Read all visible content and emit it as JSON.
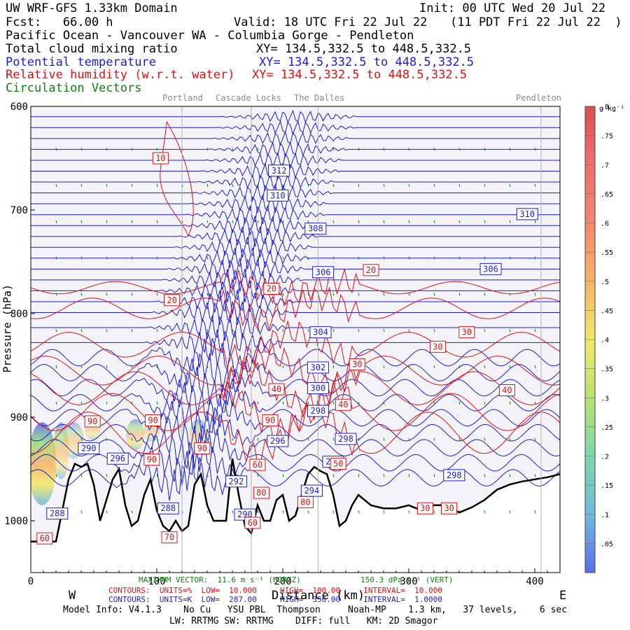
{
  "header": {
    "model": "UW WRF-GFS 1.33km Domain",
    "init": "Init: 00 UTC Wed 20 Jul 22",
    "fcst": "Fcst:   66.00 h",
    "valid": "Valid: 18 UTC Fri 22 Jul 22",
    "valid_local": "(11 PDT Fri 22 Jul 22  )",
    "region": "Pacific Ocean - Vancouver WA - Columbia Gorge - Pendleton",
    "fields": [
      {
        "name": "Total cloud mixing ratio",
        "xy": "XY= 134.5,332.5 to 448.5,332.5",
        "color": "#000000"
      },
      {
        "name": "Potential temperature",
        "xy": "XY= 134.5,332.5 to 448.5,332.5",
        "color": "#1a1ad8"
      },
      {
        "name": "Relative humidity (w.r.t. water)",
        "xy": "XY= 134.5,332.5 to 448.5,332.5",
        "color": "#e01010"
      },
      {
        "name": "Circulation Vectors",
        "xy": "",
        "color": "#108010"
      }
    ]
  },
  "locations": [
    "Portland",
    "Cascade Locks",
    "The Dalles",
    "Pendleton"
  ],
  "footer": {
    "max_vector": "MAXIMUM VECTOR:  11.6 m s⁻¹ (HORIZ)",
    "max_vector_vert": "150.3 dPa s⁻¹ (VERT)",
    "contours_rh": "CONTOURS:  UNITS=%  LOW=  10.000     HIGH=  100.00     INTERVAL=  10.000",
    "contours_theta": "CONTOURS:  UNITS=K  LOW=  287.00     HIGH=  356.00     INTERVAL=  1.0000",
    "west": "W",
    "east": "E",
    "model_info": "Model Info: V4.1.3    No Cu   YSU PBL  Thompson     Noah-MP    1.3 km,   37 levels,    6 sec",
    "model_info2": "LW: RRTMG SW: RRTMG    DIFF: full   KM: 2D Smagor"
  },
  "chart_data": {
    "type": "cross-section",
    "xlabel": "Distance (km)",
    "ylabel": "Pressure (hPa)",
    "xlim": [
      0,
      420
    ],
    "ylim": [
      1050,
      600
    ],
    "x_ticks": [
      0,
      100,
      200,
      300,
      400
    ],
    "y_ticks": [
      600,
      700,
      800,
      900,
      1000
    ],
    "location_km": [
      120,
      175,
      228,
      405
    ],
    "terrain": {
      "x": [
        0,
        5,
        10,
        20,
        30,
        35,
        40,
        45,
        50,
        55,
        60,
        65,
        70,
        75,
        80,
        85,
        90,
        95,
        100,
        105,
        110,
        115,
        120,
        125,
        130,
        135,
        140,
        145,
        150,
        155,
        160,
        165,
        170,
        175,
        180,
        185,
        190,
        195,
        200,
        205,
        210,
        215,
        220,
        225,
        230,
        235,
        240,
        245,
        250,
        255,
        260,
        270,
        280,
        290,
        300,
        310,
        320,
        330,
        340,
        350,
        360,
        370,
        380,
        390,
        400,
        410,
        420
      ],
      "p": [
        1020,
        1020,
        1020,
        1020,
        960,
        945,
        948,
        945,
        965,
        1000,
        980,
        960,
        950,
        985,
        1005,
        1000,
        975,
        960,
        990,
        1005,
        1010,
        1000,
        1010,
        1005,
        965,
        955,
        985,
        1000,
        1000,
        1000,
        940,
        975,
        1005,
        1012,
        985,
        1000,
        1000,
        980,
        975,
        1000,
        995,
        975,
        955,
        948,
        952,
        955,
        975,
        1005,
        1000,
        985,
        975,
        985,
        988,
        988,
        985,
        990,
        985,
        985,
        992,
        987,
        980,
        970,
        965,
        962,
        960,
        958,
        955
      ]
    },
    "theta_labels": [
      {
        "value": "312",
        "x": 197,
        "p": 662
      },
      {
        "value": "310",
        "x": 196,
        "p": 686
      },
      {
        "value": "310",
        "x": 394,
        "p": 704
      },
      {
        "value": "308",
        "x": 226,
        "p": 718
      },
      {
        "value": "306",
        "x": 232,
        "p": 760
      },
      {
        "value": "306",
        "x": 365,
        "p": 757
      },
      {
        "value": "304",
        "x": 230,
        "p": 818
      },
      {
        "value": "302",
        "x": 228,
        "p": 852
      },
      {
        "value": "300",
        "x": 228,
        "p": 872
      },
      {
        "value": "298",
        "x": 228,
        "p": 894
      },
      {
        "value": "298",
        "x": 250,
        "p": 921
      },
      {
        "value": "298",
        "x": 336,
        "p": 956
      },
      {
        "value": "296",
        "x": 69,
        "p": 940
      },
      {
        "value": "296",
        "x": 196,
        "p": 923
      },
      {
        "value": "294",
        "x": 223,
        "p": 971
      },
      {
        "value": "294",
        "x": 240,
        "p": 943
      },
      {
        "value": "292",
        "x": 163,
        "p": 962
      },
      {
        "value": "290",
        "x": 170,
        "p": 994
      },
      {
        "value": "290",
        "x": 46,
        "p": 930
      },
      {
        "value": "288",
        "x": 109,
        "p": 988
      },
      {
        "value": "288",
        "x": 21,
        "p": 993
      }
    ],
    "rh_labels": [
      {
        "value": "10",
        "x": 103,
        "p": 650
      },
      {
        "value": "20",
        "x": 270,
        "p": 758
      },
      {
        "value": "20",
        "x": 191,
        "p": 776
      },
      {
        "value": "20",
        "x": 112,
        "p": 787
      },
      {
        "value": "30",
        "x": 346,
        "p": 818
      },
      {
        "value": "30",
        "x": 323,
        "p": 832
      },
      {
        "value": "30",
        "x": 259,
        "p": 849
      },
      {
        "value": "40",
        "x": 378,
        "p": 874
      },
      {
        "value": "40",
        "x": 195,
        "p": 873
      },
      {
        "value": "40",
        "x": 248,
        "p": 888
      },
      {
        "value": "90",
        "x": 49,
        "p": 904
      },
      {
        "value": "90",
        "x": 97,
        "p": 903
      },
      {
        "value": "90",
        "x": 136,
        "p": 930
      },
      {
        "value": "90",
        "x": 96,
        "p": 941
      },
      {
        "value": "90",
        "x": 190,
        "p": 903
      },
      {
        "value": "50",
        "x": 244,
        "p": 945
      },
      {
        "value": "60",
        "x": 180,
        "p": 946
      },
      {
        "value": "80",
        "x": 183,
        "p": 973
      },
      {
        "value": "60",
        "x": 176,
        "p": 1002
      },
      {
        "value": "80",
        "x": 218,
        "p": 982
      },
      {
        "value": "70",
        "x": 110,
        "p": 1016
      },
      {
        "value": "60",
        "x": 11,
        "p": 1017
      },
      {
        "value": "30",
        "x": 313,
        "p": 988
      },
      {
        "value": "30",
        "x": 332,
        "p": 988
      }
    ],
    "colorbar": {
      "units": "g kg⁻¹",
      "labels": [
        ".8",
        ".75",
        ".7",
        ".65",
        ".6",
        ".55",
        ".5",
        ".45",
        ".4",
        ".35",
        ".3",
        ".25",
        ".2",
        ".15",
        ".1",
        ".05"
      ],
      "min": 0,
      "max": 0.8
    },
    "colors": {
      "theta": "#1a1ad8",
      "rh": "#e01010",
      "terrain": "#000000",
      "vectors": "#108010",
      "background": "#f5f3fa"
    }
  }
}
